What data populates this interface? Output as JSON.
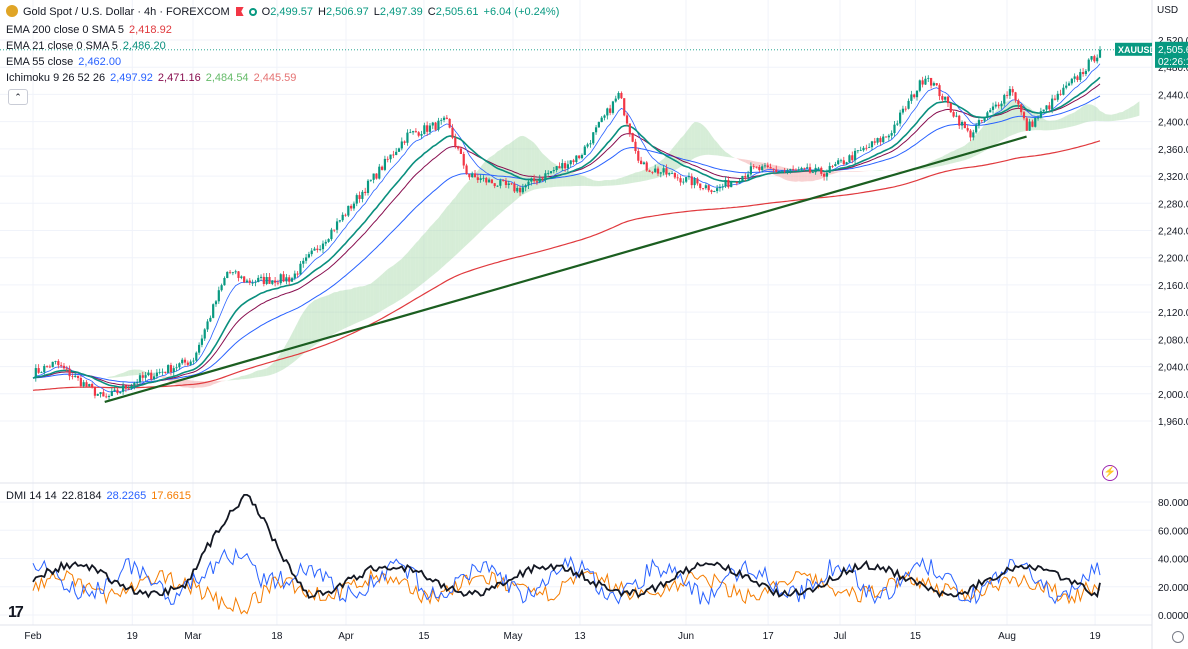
{
  "header": {
    "symbol_title": "Gold Spot / U.S. Dollar · 4h · FOREXCOM",
    "open_label": "O",
    "open": "2,499.57",
    "high_label": "H",
    "high": "2,506.97",
    "low_label": "L",
    "low": "2,497.39",
    "close_label": "C",
    "close": "2,505.61",
    "change": "+6.04 (+0.24%)"
  },
  "indicators": {
    "ema200": {
      "label": "EMA 200 close 0 SMA 5",
      "value": "2,418.92",
      "color": "#e03a3e"
    },
    "ema21": {
      "label": "EMA 21 close 0 SMA 5",
      "value": "2,486.20",
      "color": "#0a8f7e"
    },
    "ema55": {
      "label": "EMA 55 close",
      "value": "2,462.00",
      "color": "#2962ff"
    },
    "ichimoku": {
      "label": "Ichimoku 9 26 52 26",
      "v1": "2,497.92",
      "v2": "2,471.16",
      "v3": "2,484.54",
      "v4": "2,445.59",
      "c1": "#2962ff",
      "c2": "#880e4f",
      "c3": "#43a047",
      "c4": "#e57373"
    }
  },
  "dmi": {
    "label": "DMI 14 14",
    "adx": "22.8184",
    "plus_di": "28.2265",
    "minus_di": "17.6615",
    "adx_color": "#131722",
    "plus_color": "#2962ff",
    "minus_color": "#f57c00"
  },
  "price_axis": {
    "currency": "USD",
    "ticks": [
      "2,520.00",
      "2,480.00",
      "2,440.00",
      "2,400.00",
      "2,360.00",
      "2,320.00",
      "2,280.00",
      "2,240.00",
      "2,200.00",
      "2,160.00",
      "2,120.00",
      "2,080.00",
      "2,040.00",
      "2,000.00",
      "1,960.00"
    ],
    "last_price_tag": "2,505.6",
    "symbol_tag": "XAUUSD",
    "countdown": "02:26:1"
  },
  "dmi_axis": {
    "ticks": [
      "80.0000",
      "60.0000",
      "40.0000",
      "20.0000",
      "0.0000"
    ]
  },
  "time_axis": {
    "labels": [
      "Feb",
      "19",
      "Mar",
      "18",
      "Apr",
      "15",
      "May",
      "13",
      "Jun",
      "17",
      "Jul",
      "15",
      "Aug",
      "19"
    ]
  },
  "colors": {
    "up": "#089981",
    "down": "#f23645",
    "trendline": "#1b5e20",
    "kumo_bull": "#a5d6a7",
    "kumo_bear": "#ef9a9a"
  },
  "chart_data": [
    {
      "type": "candlestick",
      "title": "Gold Spot / U.S. Dollar · 4h · FOREXCOM",
      "x_range": [
        "Feb",
        "Aug 19"
      ],
      "ylim": [
        1960,
        2520
      ],
      "y_unit": "USD",
      "close_path": [
        {
          "date": "Feb 1",
          "close": 2030
        },
        {
          "date": "Feb 5",
          "close": 2045
        },
        {
          "date": "Feb 14",
          "close": 1992
        },
        {
          "date": "Feb 20",
          "close": 2020
        },
        {
          "date": "Mar 1",
          "close": 2050
        },
        {
          "date": "Mar 8",
          "close": 2180
        },
        {
          "date": "Mar 12",
          "close": 2165
        },
        {
          "date": "Mar 21",
          "close": 2170
        },
        {
          "date": "Mar 28",
          "close": 2230
        },
        {
          "date": "Apr 12",
          "close": 2380
        },
        {
          "date": "Apr 19",
          "close": 2400
        },
        {
          "date": "Apr 23",
          "close": 2320
        },
        {
          "date": "May 2",
          "close": 2300
        },
        {
          "date": "May 13",
          "close": 2350
        },
        {
          "date": "May 20",
          "close": 2440
        },
        {
          "date": "May 24",
          "close": 2335
        },
        {
          "date": "Jun 7",
          "close": 2300
        },
        {
          "date": "Jun 14",
          "close": 2330
        },
        {
          "date": "Jun 28",
          "close": 2325
        },
        {
          "date": "Jul 10",
          "close": 2380
        },
        {
          "date": "Jul 17",
          "close": 2470
        },
        {
          "date": "Jul 25",
          "close": 2380
        },
        {
          "date": "Aug 2",
          "close": 2450
        },
        {
          "date": "Aug 5",
          "close": 2390
        },
        {
          "date": "Aug 16",
          "close": 2470
        },
        {
          "date": "Aug 20",
          "close": 2505
        }
      ],
      "trendline": {
        "from": {
          "date": "Feb 14",
          "price": 1988
        },
        "to": {
          "date": "Aug 5",
          "price": 2378
        }
      },
      "legend": [
        "EMA 200 close 0 SMA 5",
        "EMA 21 close 0 SMA 5",
        "EMA 55 close",
        "Ichimoku 9 26 52 26"
      ]
    },
    {
      "type": "line",
      "title": "DMI 14 14",
      "ylim": [
        0,
        80
      ],
      "series": [
        {
          "name": "ADX",
          "last": 22.8184
        },
        {
          "name": "+DI",
          "last": 28.2265
        },
        {
          "name": "-DI",
          "last": 17.6615
        }
      ],
      "adx_peak": {
        "date": "Mar 12",
        "value": 82
      }
    }
  ]
}
